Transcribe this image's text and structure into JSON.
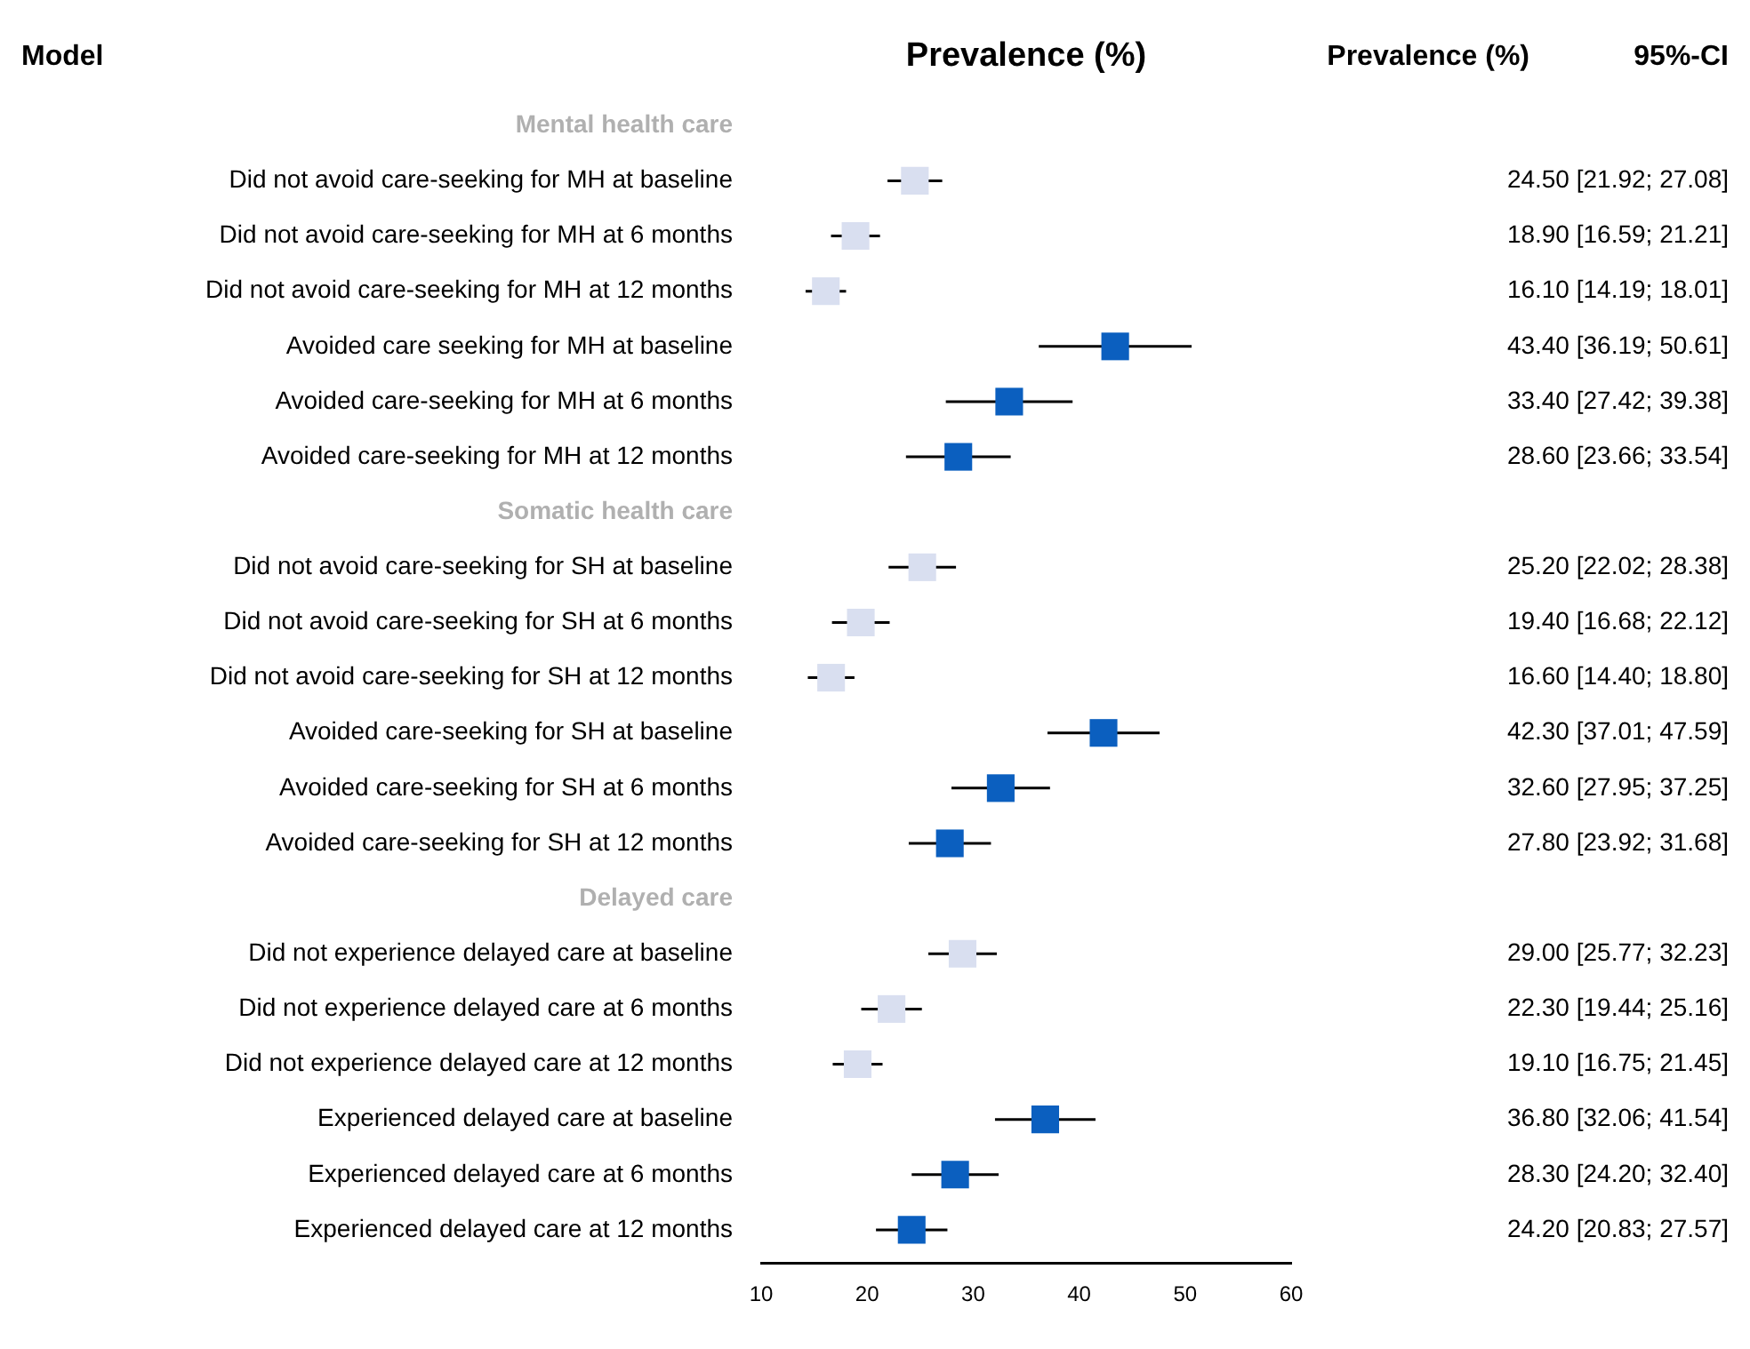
{
  "chart_data": {
    "type": "scatter",
    "orientation": "horizontal",
    "xlabel": "Prevalence (%)",
    "annotations": [
      "Model",
      "Prevalence (%)",
      "95%-CI"
    ],
    "categories": [
      "Mental health care",
      "Did not avoid care-seeking for MH at baseline",
      "Did not avoid care-seeking for MH at 6 months",
      "Did not avoid care-seeking for MH at 12 months",
      "Avoided care seeking for MH at baseline",
      "Avoided care-seeking for MH at 6 months",
      "Avoided care-seeking for MH at 12 months",
      "Somatic health care",
      "Did not avoid care-seeking for SH at baseline",
      "Did not avoid care-seeking for SH at 6 months",
      "Did not avoid care-seeking for SH at 12 months",
      "Avoided care-seeking for SH at baseline",
      "Avoided care-seeking for SH at 6 months",
      "Avoided care-seeking for SH at 12 months",
      "Delayed care",
      "Did not experience delayed care at baseline",
      "Did not experience delayed care at 6 months",
      "Did not experience delayed care at 12 months",
      "Experienced delayed care at baseline",
      "Experienced delayed care at 6 months",
      "Experienced delayed care at 12 months"
    ],
    "values": [
      null,
      24.5,
      18.9,
      16.1,
      43.4,
      33.4,
      28.6,
      null,
      25.2,
      19.4,
      16.6,
      42.3,
      32.6,
      27.8,
      null,
      29.0,
      22.3,
      19.1,
      36.8,
      28.3,
      24.2
    ],
    "errors": [
      null,
      [
        21.92,
        27.08
      ],
      [
        16.59,
        21.21
      ],
      [
        14.19,
        18.01
      ],
      [
        36.19,
        50.61
      ],
      [
        27.42,
        39.38
      ],
      [
        23.66,
        33.54
      ],
      null,
      [
        22.02,
        28.38
      ],
      [
        16.68,
        22.12
      ],
      [
        14.4,
        18.8
      ],
      [
        37.01,
        47.59
      ],
      [
        27.95,
        37.25
      ],
      [
        23.92,
        31.68
      ],
      null,
      [
        25.77,
        32.23
      ],
      [
        19.44,
        25.16
      ],
      [
        16.75,
        21.45
      ],
      [
        32.06,
        41.54
      ],
      [
        24.2,
        32.4
      ],
      [
        20.83,
        27.57
      ]
    ],
    "value_labels": [
      null,
      "24.50 [21.92; 27.08]",
      "18.90 [16.59; 21.21]",
      "16.10 [14.19; 18.01]",
      "43.40 [36.19; 50.61]",
      "33.40 [27.42; 39.38]",
      "28.60 [23.66; 33.54]",
      null,
      "25.20 [22.02; 28.38]",
      "19.40 [16.68; 22.12]",
      "16.60 [14.40; 18.80]",
      "42.30 [37.01; 47.59]",
      "32.60 [27.95; 37.25]",
      "27.80 [23.92; 31.68]",
      null,
      "29.00 [25.77; 32.23]",
      "22.30 [19.44; 25.16]",
      "19.10 [16.75; 21.45]",
      "36.80 [32.06; 41.54]",
      "28.30 [24.20; 32.40]",
      "24.20 [20.83; 27.57]"
    ],
    "colors": [
      null,
      "#d9dff0",
      "#d9dff0",
      "#d9dff0",
      "#0b5fbf",
      "#0b5fbf",
      "#0b5fbf",
      null,
      "#d9dff0",
      "#d9dff0",
      "#d9dff0",
      "#0b5fbf",
      "#0b5fbf",
      "#0b5fbf",
      null,
      "#d9dff0",
      "#d9dff0",
      "#d9dff0",
      "#0b5fbf",
      "#0b5fbf",
      "#0b5fbf"
    ],
    "xlim": [
      10,
      60
    ],
    "xticks": [
      10,
      20,
      30,
      40,
      50,
      60
    ],
    "grid": false,
    "legend": false,
    "marker": "square"
  }
}
